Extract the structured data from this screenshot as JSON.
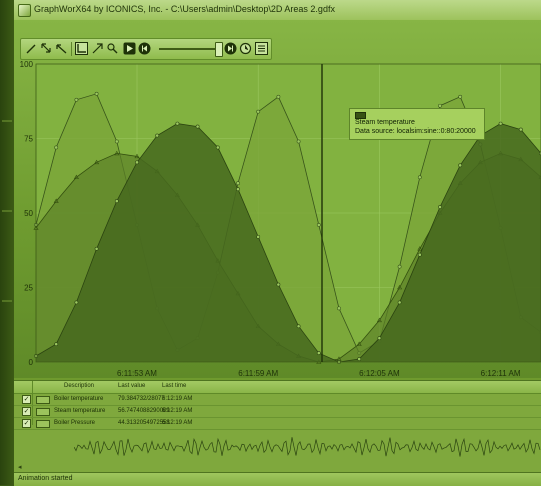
{
  "window": {
    "title": "GraphWorX64 by ICONICS, Inc. - C:\\Users\\admin\\Desktop\\2D Areas 2.gdfx"
  },
  "toolbar": {
    "buttons": [
      "pen-icon",
      "zoom-icon",
      "pan-icon",
      "axis-icon",
      "cursor-icon",
      "magnify-icon",
      "play-icon",
      "rewind-icon",
      "fast-forward-icon",
      "clock-icon",
      "legend-icon"
    ]
  },
  "tooltip": {
    "name": "Steam temperature",
    "source": "Data source: localsim:sine::0:80:20000"
  },
  "legend": {
    "headers": {
      "description": "Description",
      "last_value": "Last value",
      "last_time": "Last time"
    },
    "rows": [
      {
        "description": "Boiler temperature",
        "last_value": "79.384732/28077",
        "last_time": "6:12:19 AM"
      },
      {
        "description": "Steam temperature",
        "last_value": "56.7474088290009",
        "last_time": "6:12:19 AM"
      },
      {
        "description": "Boiler Pressure",
        "last_value": "44.3132054972558",
        "last_time": "6:12:19 AM"
      }
    ]
  },
  "status": {
    "text": "Animation started"
  },
  "colors": {
    "accent": "#8fc24a",
    "panel": "#6f9a2e"
  },
  "chart_data": {
    "type": "area",
    "ylim": [
      0,
      100
    ],
    "y_ticks": [
      "100",
      "75",
      "50",
      "25",
      "0"
    ],
    "x_ticks": [
      "6:11:53 AM",
      "6:11:59 AM",
      "6:12:05 AM",
      "6:12:11 AM"
    ],
    "series": [
      {
        "name": "Boiler temperature",
        "x": [
          0,
          4,
          8,
          12,
          16,
          20,
          24,
          28,
          32,
          36,
          40,
          44,
          48,
          52,
          56,
          60,
          64,
          68,
          72,
          76,
          80,
          84,
          88,
          92,
          96,
          100
        ],
        "values": [
          46,
          72,
          88,
          90,
          74,
          46,
          18,
          4,
          8,
          30,
          60,
          84,
          89,
          74,
          46,
          18,
          3,
          7,
          32,
          62,
          86,
          89,
          73,
          45,
          15,
          10
        ]
      },
      {
        "name": "Steam temperature",
        "x": [
          0,
          4,
          8,
          12,
          16,
          20,
          24,
          28,
          32,
          36,
          40,
          44,
          48,
          52,
          56,
          60,
          64,
          68,
          72,
          76,
          80,
          84,
          88,
          92,
          96,
          100
        ],
        "values": [
          2,
          6,
          20,
          38,
          54,
          67,
          76,
          80,
          79,
          72,
          58,
          42,
          26,
          12,
          3,
          0,
          1,
          8,
          20,
          36,
          52,
          66,
          76,
          80,
          78,
          70
        ]
      },
      {
        "name": "Boiler Pressure",
        "x": [
          0,
          4,
          8,
          12,
          16,
          20,
          24,
          28,
          32,
          36,
          40,
          44,
          48,
          52,
          56,
          60,
          64,
          68,
          72,
          76,
          80,
          84,
          88,
          92,
          96,
          100
        ],
        "values": [
          45,
          54,
          62,
          67,
          70,
          69,
          64,
          56,
          46,
          34,
          23,
          12,
          6,
          2,
          0,
          1,
          6,
          14,
          25,
          38,
          50,
          60,
          67,
          70,
          68,
          62
        ]
      }
    ]
  }
}
